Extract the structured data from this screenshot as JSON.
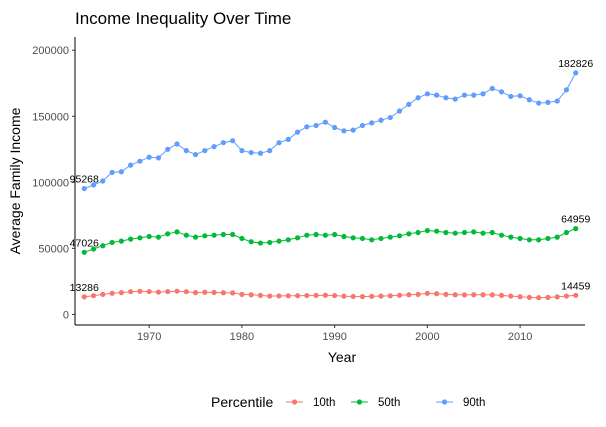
{
  "chart_data": {
    "type": "line",
    "title": "Income Inequality Over Time",
    "xlabel": "Year",
    "ylabel": "Average Family Income",
    "xlim": [
      1962,
      2017
    ],
    "ylim": [
      -8000,
      210000
    ],
    "x_ticks": [
      1970,
      1980,
      1990,
      2000,
      2010
    ],
    "y_ticks": [
      0,
      50000,
      100000,
      150000,
      200000
    ],
    "y_tick_labels": [
      "0",
      "50000",
      "100000",
      "150000",
      "200000"
    ],
    "grid": false,
    "legend": {
      "title": "Percentile",
      "placement": "bottom"
    },
    "x": [
      1963,
      1964,
      1965,
      1966,
      1967,
      1968,
      1969,
      1970,
      1971,
      1972,
      1973,
      1974,
      1975,
      1976,
      1977,
      1978,
      1979,
      1980,
      1981,
      1982,
      1983,
      1984,
      1985,
      1986,
      1987,
      1988,
      1989,
      1990,
      1991,
      1992,
      1993,
      1994,
      1995,
      1996,
      1997,
      1998,
      1999,
      2000,
      2001,
      2002,
      2003,
      2004,
      2005,
      2006,
      2007,
      2008,
      2009,
      2010,
      2011,
      2012,
      2013,
      2014,
      2015,
      2016
    ],
    "series": [
      {
        "name": "10th",
        "color": "#F8766D",
        "values": [
          13286,
          14200,
          15200,
          16000,
          16500,
          17200,
          17500,
          17300,
          16900,
          17300,
          17600,
          17200,
          16500,
          16800,
          16600,
          16400,
          16300,
          15200,
          14900,
          14400,
          13900,
          14000,
          14100,
          14200,
          14300,
          14400,
          14500,
          14300,
          13800,
          13600,
          13500,
          13700,
          13900,
          14100,
          14500,
          14900,
          15200,
          16000,
          15700,
          15200,
          14900,
          14800,
          14900,
          14900,
          14800,
          14400,
          13900,
          13400,
          12900,
          12700,
          12900,
          13300,
          13900,
          14459
        ],
        "start_label": "13286",
        "end_label": "14459"
      },
      {
        "name": "50th",
        "color": "#00BA38",
        "values": [
          47026,
          49500,
          52000,
          54500,
          55500,
          57000,
          58000,
          59000,
          58500,
          61000,
          62500,
          60000,
          58500,
          59500,
          60000,
          60500,
          60500,
          57500,
          55000,
          54000,
          54500,
          55500,
          56500,
          58000,
          60000,
          60500,
          60000,
          60500,
          59000,
          58000,
          57500,
          56500,
          57500,
          58500,
          59500,
          61000,
          62000,
          63500,
          63000,
          62000,
          61500,
          62000,
          62500,
          61500,
          62000,
          60000,
          58500,
          57500,
          56500,
          56500,
          57500,
          58500,
          62000,
          64959
        ],
        "start_label": "47026",
        "end_label": "64959"
      },
      {
        "name": "90th",
        "color": "#619CFF",
        "values": [
          95268,
          98000,
          101000,
          107500,
          108000,
          113000,
          116000,
          119000,
          118500,
          125000,
          129000,
          124000,
          121000,
          124000,
          127000,
          130000,
          131500,
          124000,
          122500,
          122000,
          124000,
          130000,
          132500,
          138000,
          142000,
          143000,
          145500,
          141500,
          139000,
          139500,
          143000,
          145000,
          147000,
          149000,
          154000,
          159000,
          164000,
          167000,
          166000,
          164000,
          163000,
          166000,
          166000,
          167000,
          171000,
          168500,
          165000,
          165500,
          162500,
          160000,
          160500,
          161500,
          170000,
          182826
        ],
        "start_label": "95268",
        "end_label": "182826"
      }
    ]
  }
}
